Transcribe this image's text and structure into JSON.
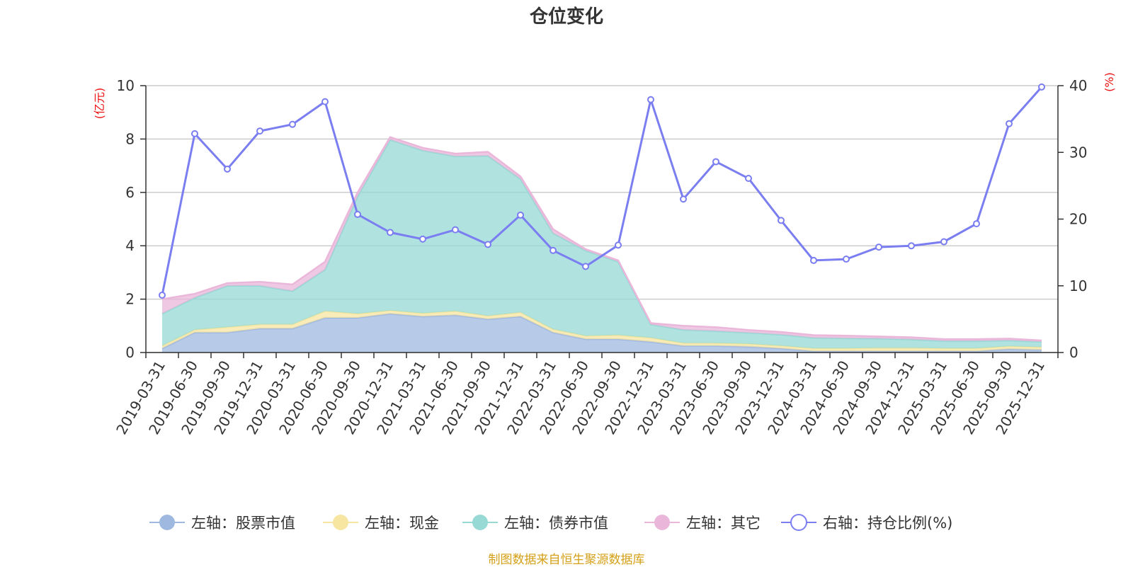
{
  "chart_data": {
    "type": "area",
    "title": "仓位变化",
    "left_axis_unit": "(亿元)",
    "right_axis_unit": "(%)",
    "left_ylim": [
      0,
      10
    ],
    "right_ylim": [
      0,
      40
    ],
    "left_ticks": [
      "0",
      "2",
      "4",
      "6",
      "8",
      "10"
    ],
    "right_ticks": [
      "0",
      "10",
      "20",
      "30",
      "40"
    ],
    "categories": [
      "2019-03-31",
      "2019-06-30",
      "2019-09-30",
      "2019-12-31",
      "2020-03-31",
      "2020-06-30",
      "2020-09-30",
      "2020-12-31",
      "2021-03-31",
      "2021-06-30",
      "2021-09-30",
      "2021-12-31",
      "2022-03-31",
      "2022-06-30",
      "2022-09-30",
      "2022-12-31",
      "2023-03-31",
      "2023-06-30",
      "2023-09-30",
      "2023-12-31",
      "2024-03-31",
      "2024-06-30",
      "2024-09-30",
      "2024-12-31",
      "2025-03-31",
      "2025-06-30",
      "2025-09-30",
      "2025-12-31"
    ],
    "stacked_series": [
      {
        "name": "左轴：股票市值",
        "color": "#9fb8e0",
        "values": [
          0.15,
          0.75,
          0.75,
          0.9,
          0.9,
          1.3,
          1.3,
          1.45,
          1.35,
          1.4,
          1.25,
          1.35,
          0.75,
          0.5,
          0.5,
          0.4,
          0.25,
          0.25,
          0.22,
          0.15,
          0.05,
          0.05,
          0.05,
          0.05,
          0.05,
          0.05,
          0.13,
          0.1
        ]
      },
      {
        "name": "左轴：现金",
        "color": "#f7e6a1",
        "values": [
          0.1,
          0.1,
          0.2,
          0.15,
          0.15,
          0.25,
          0.15,
          0.12,
          0.12,
          0.15,
          0.12,
          0.15,
          0.12,
          0.12,
          0.15,
          0.15,
          0.1,
          0.1,
          0.1,
          0.1,
          0.1,
          0.1,
          0.12,
          0.12,
          0.1,
          0.1,
          0.1,
          0.1
        ]
      },
      {
        "name": "左轴：债券市值",
        "color": "#96d9d5",
        "values": [
          1.2,
          1.2,
          1.55,
          1.45,
          1.25,
          1.55,
          4.4,
          6.4,
          6.1,
          5.8,
          6.0,
          5.0,
          3.6,
          3.2,
          2.75,
          0.5,
          0.5,
          0.45,
          0.42,
          0.42,
          0.4,
          0.38,
          0.35,
          0.32,
          0.28,
          0.28,
          0.22,
          0.2
        ]
      },
      {
        "name": "左轴：其它",
        "color": "#eab7da",
        "values": [
          0.55,
          0.15,
          0.1,
          0.15,
          0.25,
          0.3,
          0.15,
          0.1,
          0.1,
          0.1,
          0.15,
          0.1,
          0.15,
          0.05,
          0.05,
          0.05,
          0.15,
          0.15,
          0.1,
          0.1,
          0.1,
          0.1,
          0.08,
          0.08,
          0.07,
          0.07,
          0.07,
          0.05
        ]
      }
    ],
    "line_series": {
      "name": "右轴：持仓比例(%)",
      "color": "#7b7ef0",
      "values": [
        8.6,
        32.8,
        27.5,
        33.2,
        34.2,
        37.6,
        20.7,
        18.0,
        17.0,
        18.4,
        16.2,
        20.6,
        15.3,
        12.9,
        16.1,
        37.9,
        23.0,
        28.6,
        26.1,
        19.8,
        13.8,
        14.0,
        15.8,
        16.0,
        16.6,
        19.3,
        34.3,
        39.8
      ]
    },
    "grid": true,
    "legend_position": "bottom"
  },
  "source_note": "制图数据来自恒生聚源数据库"
}
